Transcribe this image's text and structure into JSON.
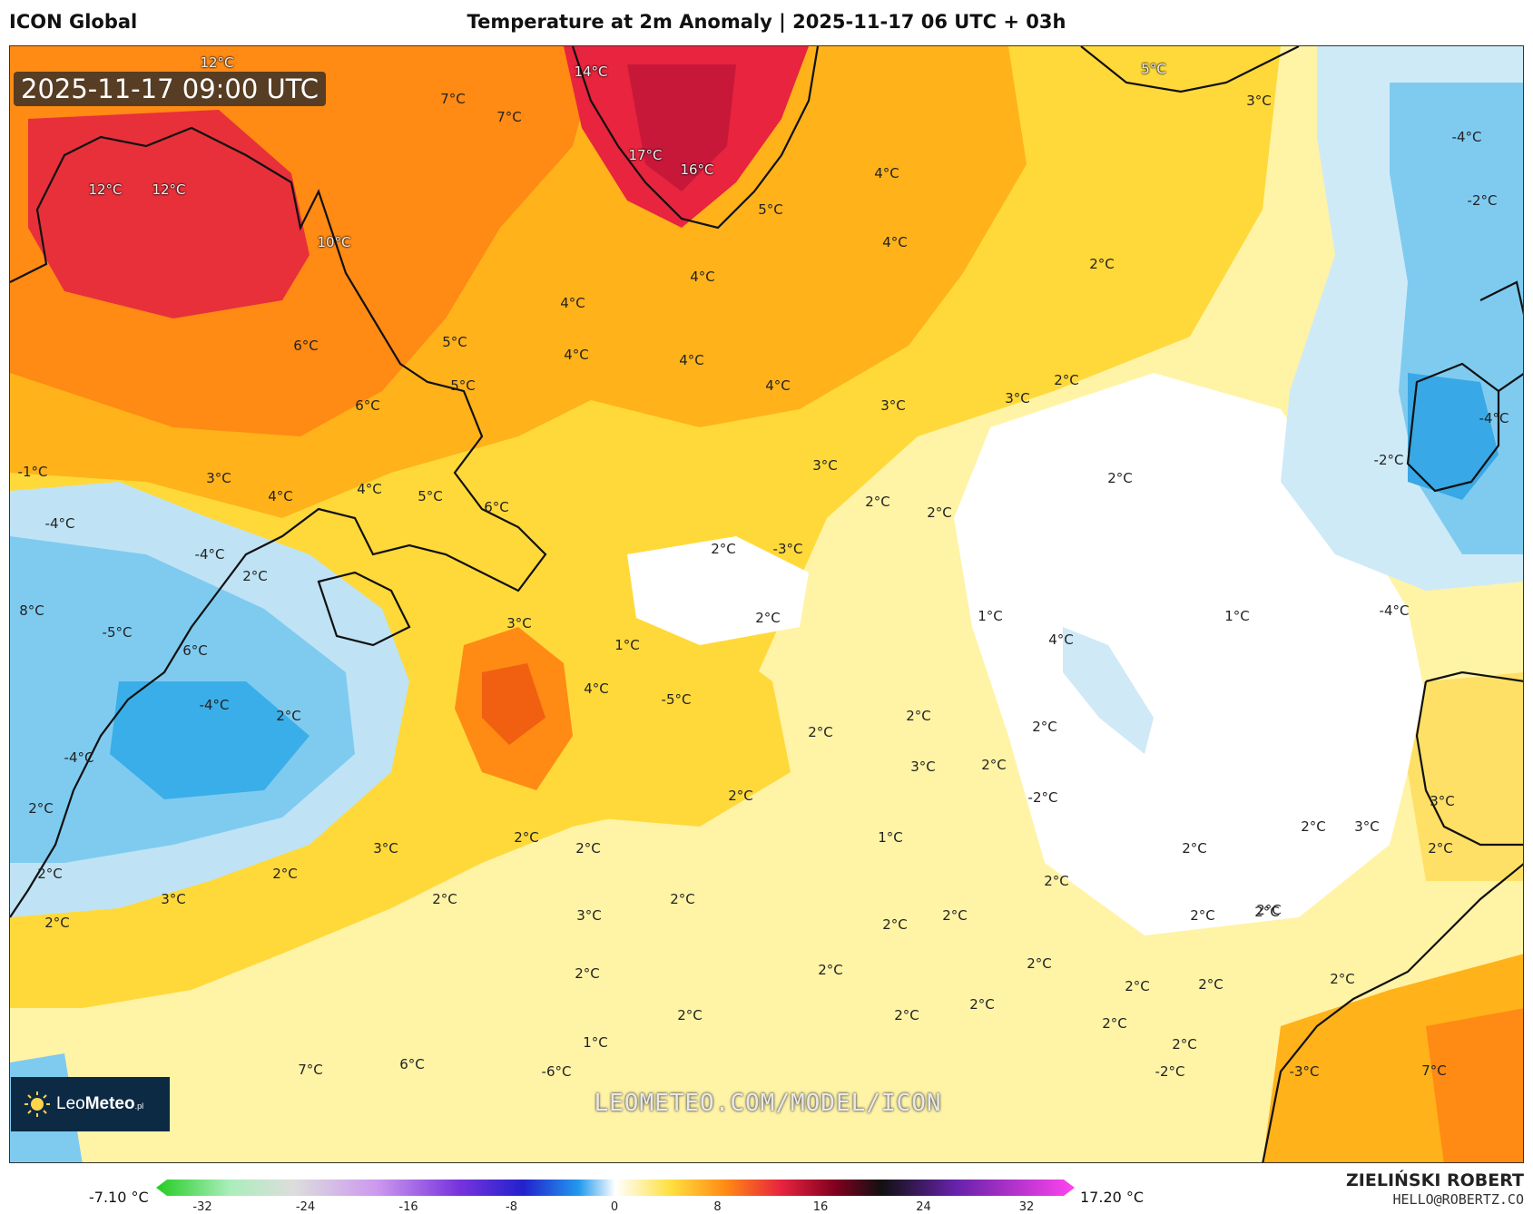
{
  "header": {
    "model": "ICON Global",
    "title": "Temperature at 2m Anomaly | 2025-11-17 06 UTC + 03h"
  },
  "timestamp": "2025-11-17 09:00 UTC",
  "watermark": "LEOMETEO.COM/MODEL/ICON",
  "logo": {
    "name_light": "Leo",
    "name_bold": "Meteo",
    "suffix": ".pl"
  },
  "author": {
    "name": "ZIELIŃSKI ROBERT",
    "email": "HELLO@ROBERTZ.CO"
  },
  "scale": {
    "min_label": "-7.10 °C",
    "max_label": "17.20 °C",
    "ticks": [
      "-32",
      "-24",
      "-16",
      "-8",
      "0",
      "8",
      "16",
      "24",
      "32"
    ]
  },
  "labels": [
    {
      "t": "12°C",
      "l": true
    },
    {
      "t": "7°C"
    },
    {
      "t": "7°C"
    },
    {
      "t": "14°C",
      "l": true
    },
    {
      "t": "5°C",
      "l": true
    },
    {
      "t": "3°C"
    },
    {
      "t": "-4°C"
    },
    {
      "t": "-2°C"
    },
    {
      "t": "12°C",
      "l": true
    },
    {
      "t": "12°C",
      "l": true
    },
    {
      "t": "17°C",
      "l": true
    },
    {
      "t": "16°C",
      "l": true
    },
    {
      "t": "5°C"
    },
    {
      "t": "4°C"
    },
    {
      "t": "10°C",
      "l": true
    },
    {
      "t": "4°C"
    },
    {
      "t": "2°C"
    },
    {
      "t": "4°C"
    },
    {
      "t": "4°C"
    },
    {
      "t": "5°C"
    },
    {
      "t": "6°C"
    },
    {
      "t": "4°C"
    },
    {
      "t": "4°C"
    },
    {
      "t": "4°C"
    },
    {
      "t": "5°C"
    },
    {
      "t": "6°C"
    },
    {
      "t": "3°C"
    },
    {
      "t": "3°C"
    },
    {
      "t": "2°C"
    },
    {
      "t": "-1°C"
    },
    {
      "t": "3°C"
    },
    {
      "t": "4°C"
    },
    {
      "t": "4°C"
    },
    {
      "t": "5°C"
    },
    {
      "t": "6°C"
    },
    {
      "t": "3°C"
    },
    {
      "t": "2°C"
    },
    {
      "t": "2°C"
    },
    {
      "t": "2°C"
    },
    {
      "t": "-2°C"
    },
    {
      "t": "-4°C"
    },
    {
      "t": "-4°C"
    },
    {
      "t": "-4°C"
    },
    {
      "t": "2°C"
    },
    {
      "t": "2°C"
    },
    {
      "t": "-3°C"
    },
    {
      "t": "8°C"
    },
    {
      "t": "3°C"
    },
    {
      "t": "2°C"
    },
    {
      "t": "1°C"
    },
    {
      "t": "1°C"
    },
    {
      "t": "-4°C"
    },
    {
      "t": "-5°C"
    },
    {
      "t": "6°C"
    },
    {
      "t": "1°C"
    },
    {
      "t": "4°C"
    },
    {
      "t": "4°C"
    },
    {
      "t": "-5°C"
    },
    {
      "t": "-4°C"
    },
    {
      "t": "2°C"
    },
    {
      "t": "2°C"
    },
    {
      "t": "2°C"
    },
    {
      "t": "-4°C"
    },
    {
      "t": "2°C"
    },
    {
      "t": "2°C"
    },
    {
      "t": "-2°C"
    },
    {
      "t": "2°C"
    },
    {
      "t": "2°C"
    },
    {
      "t": "3°C"
    },
    {
      "t": "3°C"
    },
    {
      "t": "2°C"
    },
    {
      "t": "2°C"
    },
    {
      "t": "1°C"
    },
    {
      "t": "2°C"
    },
    {
      "t": "3°C"
    },
    {
      "t": "2°C"
    },
    {
      "t": "2°C"
    },
    {
      "t": "3°C"
    },
    {
      "t": "2°C"
    },
    {
      "t": "2°C"
    },
    {
      "t": "3°C"
    },
    {
      "t": "2°C"
    },
    {
      "t": "2°C"
    },
    {
      "t": "2°C"
    },
    {
      "t": "2°C"
    },
    {
      "t": "2°C"
    },
    {
      "t": "2°C"
    },
    {
      "t": "2°C"
    },
    {
      "t": "2°C"
    },
    {
      "t": "2°C"
    },
    {
      "t": "3°C"
    },
    {
      "t": "2°C"
    },
    {
      "t": "2°C"
    },
    {
      "t": "2°C"
    },
    {
      "t": "2°C"
    },
    {
      "t": "2°C"
    },
    {
      "t": "2°C"
    },
    {
      "t": "2°C"
    },
    {
      "t": "2°C"
    },
    {
      "t": "2°C"
    },
    {
      "t": "2°C"
    },
    {
      "t": "2°C"
    },
    {
      "t": "1°C"
    },
    {
      "t": "6°C"
    },
    {
      "t": "7°C"
    },
    {
      "t": "-6°C"
    },
    {
      "t": "-2°C"
    },
    {
      "t": "-3°C"
    },
    {
      "t": "7°C"
    }
  ]
}
